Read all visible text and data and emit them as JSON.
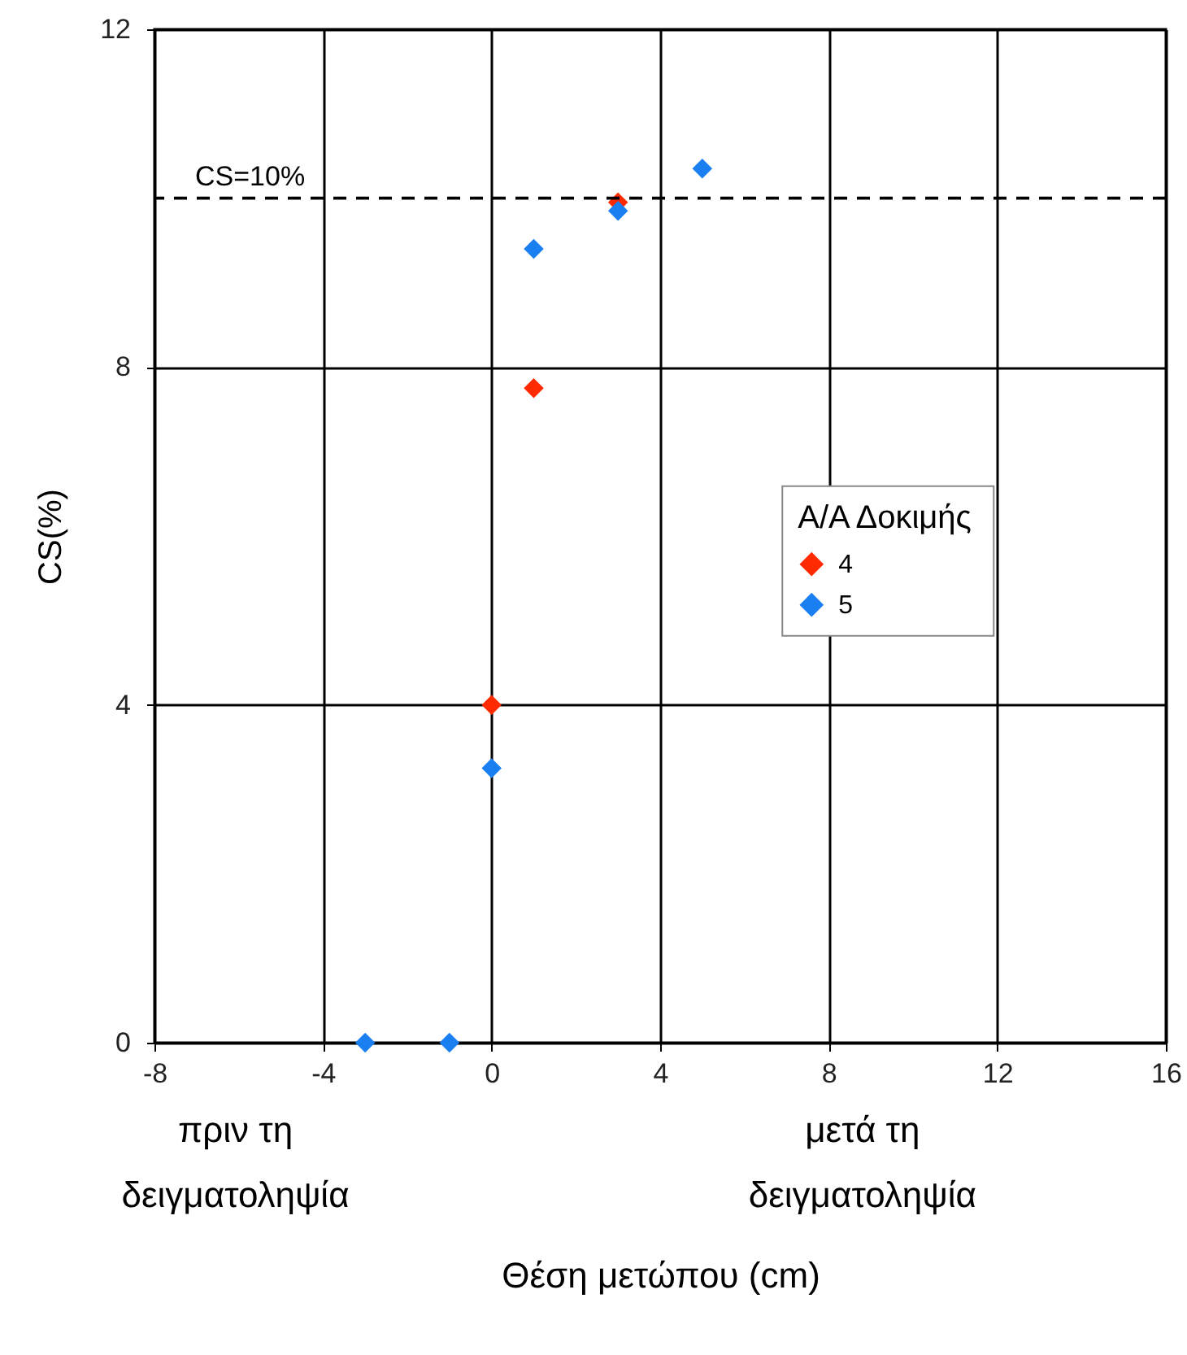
{
  "chart_data": {
    "type": "scatter",
    "xlabel": "Θέση μετώπου (cm)",
    "ylabel": "CS(%)",
    "legend_title": "Α/Α Δοκιμής",
    "xlim": [
      -8,
      16
    ],
    "xticks": [
      -8,
      -4,
      0,
      4,
      8,
      12,
      16
    ],
    "ylim": [
      0,
      12
    ],
    "yticks": [
      0,
      4,
      8,
      12
    ],
    "grid": true,
    "legend": "right",
    "marker": "diamond",
    "series": [
      {
        "name": "4",
        "color": "#ff2a00",
        "x": [
          0,
          1,
          3
        ],
        "values": [
          4.0,
          7.75,
          9.95
        ]
      },
      {
        "name": "5",
        "color": "#1a7ff0",
        "x": [
          -3,
          -1,
          0,
          1,
          3,
          5
        ],
        "values": [
          0,
          0,
          3.25,
          9.4,
          9.85,
          10.35
        ]
      }
    ],
    "ref_lines": [
      {
        "axis": "y",
        "value": 10,
        "label": "CS=10%",
        "line_style": "dashed"
      }
    ],
    "annotations": [
      "πριν τη δειγματοληψία",
      "μετά τη δειγματοληψία"
    ]
  }
}
